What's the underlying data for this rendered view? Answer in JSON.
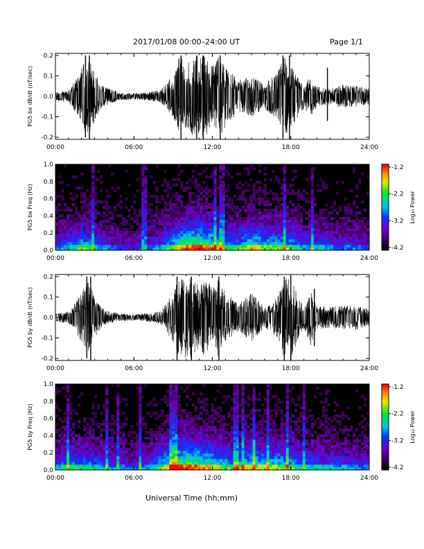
{
  "header": {
    "title": "2017/01/08  00:00–24:00 UT",
    "page": "Page 1/1"
  },
  "common_xlabel": "Universal Time (hh:mm)",
  "chart_data": [
    {
      "type": "line",
      "panel": "PG5 bx waveform",
      "ylabel": "PG5 bx dB/dt (nT/sec)",
      "x_ticks": [
        "00:00",
        "06:00",
        "12:00",
        "18:00",
        "24:00"
      ],
      "y_ticks": [
        "-0.2",
        "-0.1",
        "0.0",
        "0.1",
        "0.2"
      ],
      "xlim_hours": [
        0,
        24
      ],
      "ylim": [
        -0.21,
        0.21
      ],
      "envelope_x_hours": [
        0,
        1,
        1.5,
        2,
        2.5,
        3,
        3.5,
        4,
        5,
        6,
        7,
        8,
        9,
        9.5,
        10,
        10.5,
        11,
        11.5,
        12,
        12.5,
        13,
        14,
        15,
        16,
        17,
        17.5,
        18,
        19,
        19.5,
        20,
        21,
        22,
        23,
        24
      ],
      "envelope_y": [
        0.02,
        0.03,
        0.08,
        0.14,
        0.2,
        0.12,
        0.06,
        0.04,
        0.02,
        0.015,
        0.02,
        0.03,
        0.1,
        0.2,
        0.15,
        0.2,
        0.2,
        0.2,
        0.15,
        0.2,
        0.15,
        0.08,
        0.1,
        0.06,
        0.12,
        0.2,
        0.15,
        0.06,
        0.1,
        0.05,
        0.04,
        0.06,
        0.05,
        0.04
      ],
      "spikes": [
        {
          "x": 2.3,
          "y_max": 0.2,
          "y_min": -0.2
        },
        {
          "x": 2.6,
          "y_max": 0.2,
          "y_min": -0.21
        },
        {
          "x": 9.6,
          "y_max": 0.2,
          "y_min": -0.21
        },
        {
          "x": 10.8,
          "y_max": 0.2,
          "y_min": -0.21
        },
        {
          "x": 11.3,
          "y_max": 0.2,
          "y_min": -0.21
        },
        {
          "x": 12.6,
          "y_max": 0.2,
          "y_min": -0.21
        },
        {
          "x": 17.4,
          "y_max": 0.2,
          "y_min": -0.21
        },
        {
          "x": 17.9,
          "y_max": 0.2,
          "y_min": -0.21
        },
        {
          "x": 20.8,
          "y_max": 0.14,
          "y_min": -0.12
        }
      ],
      "color": "#000000"
    },
    {
      "type": "heatmap",
      "panel": "PG5 bx spectrogram",
      "ylabel": "PG5 bx Freq (Hz)",
      "x_ticks": [
        "00:00",
        "06:00",
        "12:00",
        "18:00",
        "24:00"
      ],
      "y_ticks": [
        "0.0",
        "0.2",
        "0.4",
        "0.6",
        "0.8",
        "1.0"
      ],
      "xlim_hours": [
        0,
        24
      ],
      "ylim_hz": [
        0,
        1.0
      ],
      "colorbar": {
        "label": "Log₁₀ Power",
        "ticks": [
          "-1.2",
          "-2.2",
          "-3.2",
          "-4.2"
        ],
        "range": [
          -4.2,
          -1.2
        ]
      },
      "activity_profile_x_hours": [
        0,
        1,
        2,
        3,
        4,
        5,
        6,
        7,
        8,
        9,
        10,
        11,
        12,
        13,
        14,
        15,
        16,
        17,
        18,
        19,
        20,
        21,
        22,
        23,
        24
      ],
      "activity_profile_level": [
        0.35,
        0.45,
        0.55,
        0.45,
        0.35,
        0.3,
        0.25,
        0.3,
        0.4,
        0.6,
        0.75,
        0.8,
        0.7,
        0.5,
        0.5,
        0.65,
        0.6,
        0.55,
        0.55,
        0.4,
        0.45,
        0.35,
        0.35,
        0.35,
        0.3
      ]
    },
    {
      "type": "line",
      "panel": "PG5 by waveform",
      "ylabel": "PG5 by dB/dt (nT/sec)",
      "x_ticks": [
        "00:00",
        "06:00",
        "12:00",
        "18:00",
        "24:00"
      ],
      "y_ticks": [
        "-0.2",
        "-0.1",
        "0.0",
        "0.1",
        "0.2"
      ],
      "xlim_hours": [
        0,
        24
      ],
      "ylim": [
        -0.21,
        0.21
      ],
      "envelope_x_hours": [
        0,
        1,
        1.5,
        2,
        2.5,
        3,
        3.5,
        4,
        5,
        6,
        7,
        8,
        9,
        9.5,
        10,
        10.5,
        11,
        11.5,
        12,
        12.5,
        13,
        14,
        15,
        16,
        17,
        17.5,
        18,
        19,
        19.5,
        20,
        21,
        22,
        23,
        24
      ],
      "envelope_y": [
        0.02,
        0.03,
        0.07,
        0.12,
        0.2,
        0.1,
        0.05,
        0.03,
        0.02,
        0.015,
        0.02,
        0.03,
        0.12,
        0.2,
        0.2,
        0.2,
        0.15,
        0.2,
        0.14,
        0.2,
        0.12,
        0.07,
        0.12,
        0.05,
        0.1,
        0.2,
        0.2,
        0.05,
        0.14,
        0.06,
        0.05,
        0.06,
        0.06,
        0.04
      ],
      "spikes": [
        {
          "x": 2.4,
          "y_max": 0.2,
          "y_min": -0.2
        },
        {
          "x": 2.7,
          "y_max": 0.2,
          "y_min": -0.21
        },
        {
          "x": 9.3,
          "y_max": 0.2,
          "y_min": -0.21
        },
        {
          "x": 10.4,
          "y_max": 0.2,
          "y_min": -0.21
        },
        {
          "x": 12.5,
          "y_max": 0.2,
          "y_min": -0.21
        },
        {
          "x": 17.5,
          "y_max": 0.2,
          "y_min": -0.21
        },
        {
          "x": 18.0,
          "y_max": 0.2,
          "y_min": -0.21
        },
        {
          "x": 19.8,
          "y_max": 0.14,
          "y_min": -0.14
        }
      ],
      "color": "#000000"
    },
    {
      "type": "heatmap",
      "panel": "PG5 by spectrogram",
      "ylabel": "PG5 by Freq (Hz)",
      "x_ticks": [
        "00:00",
        "06:00",
        "12:00",
        "18:00",
        "24:00"
      ],
      "y_ticks": [
        "0.0",
        "0.2",
        "0.4",
        "0.6",
        "0.8",
        "1.0"
      ],
      "xlim_hours": [
        0,
        24
      ],
      "ylim_hz": [
        0,
        1.0
      ],
      "colorbar": {
        "label": "Log₁₀ Power",
        "ticks": [
          "-1.2",
          "-2.2",
          "-3.2",
          "-4.2"
        ],
        "range": [
          -4.2,
          -1.2
        ]
      },
      "activity_profile_x_hours": [
        0,
        1,
        2,
        3,
        4,
        5,
        6,
        7,
        8,
        9,
        10,
        11,
        12,
        13,
        14,
        15,
        16,
        17,
        18,
        19,
        20,
        21,
        22,
        23,
        24
      ],
      "activity_profile_level": [
        0.4,
        0.5,
        0.5,
        0.45,
        0.4,
        0.35,
        0.3,
        0.35,
        0.55,
        0.75,
        0.8,
        0.75,
        0.65,
        0.55,
        0.55,
        0.65,
        0.6,
        0.6,
        0.55,
        0.45,
        0.45,
        0.4,
        0.4,
        0.35,
        0.35
      ]
    }
  ]
}
